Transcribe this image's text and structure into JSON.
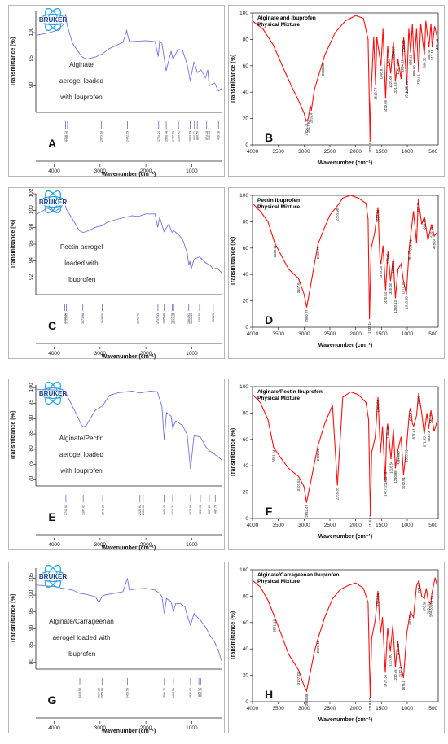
{
  "logo_text": "BRUKER",
  "colors": {
    "blue_spectrum": "#6f73e0",
    "red_spectrum": "#ff1010",
    "logo": "#29a9e0"
  },
  "chart_data": [
    {
      "id": "A",
      "type": "line",
      "letter": "A",
      "style": "bruker",
      "title_lines": [
        "Alginate",
        "aerogel loaded",
        "with Ibuprofen"
      ],
      "xlabel": "Wavenumber (cm⁻¹)",
      "ylabel": "Transmittance [%]",
      "xlim": [
        4400,
        350
      ],
      "ylim": [
        85,
        104
      ],
      "xticks": [
        4000,
        3000,
        2000,
        1000
      ],
      "xtick_labels": [
        "4000",
        "3000",
        "2000",
        "1000"
      ],
      "yticks": [
        90,
        95,
        100
      ],
      "ytick_labels": [
        "90",
        "95",
        "100"
      ],
      "peaks": [
        "3749.12",
        "3708.74",
        "2973.98",
        "2402.29",
        "1721.24",
        "1556.48",
        "1407.91",
        "1289.42",
        "1033.99",
        "940.72",
        "880.56",
        "674.28",
        "622.66",
        "416.78"
      ],
      "x": [
        4400,
        4100,
        3950,
        3800,
        3750,
        3720,
        3600,
        3400,
        3300,
        3100,
        2950,
        2800,
        2500,
        2420,
        2360,
        2000,
        1800,
        1730,
        1700,
        1650,
        1560,
        1450,
        1410,
        1300,
        1200,
        1100,
        1033,
        950,
        880,
        800,
        700,
        650,
        620,
        500,
        420,
        350
      ],
      "y": [
        99.5,
        100.0,
        100.4,
        101.5,
        103.5,
        101.5,
        98.0,
        95.5,
        95.0,
        95.4,
        96.0,
        97.0,
        98.2,
        100.4,
        98.3,
        98.5,
        98.3,
        95.5,
        98.4,
        98.0,
        92.8,
        96.5,
        95.0,
        96.8,
        96.7,
        94.0,
        91.0,
        94.5,
        92.5,
        93.0,
        91.5,
        93.0,
        90.0,
        90.5,
        89.0,
        89.5
      ]
    },
    {
      "id": "B",
      "type": "line",
      "letter": "B",
      "style": "red",
      "title_lines": [
        "Alginate and Ibuprofen",
        "Physical Mixture"
      ],
      "xlabel": "Wavenumber (cm⁻¹)",
      "ylabel": "Transmittance (%)",
      "xlim": [
        4000,
        400
      ],
      "ylim": [
        0,
        100
      ],
      "xticks": [
        4000,
        3500,
        3000,
        2500,
        2000,
        1500,
        1000,
        500
      ],
      "xtick_labels": [
        "4000",
        "3500",
        "3000",
        "2500",
        "2000",
        "1500",
        "1000",
        "500"
      ],
      "yticks": [
        0,
        20,
        40,
        60,
        80,
        100
      ],
      "ytick_labels": [
        "0",
        "20",
        "40",
        "60",
        "80",
        "100"
      ],
      "annotations": [
        "2917.92",
        "2954.71",
        "2859.4",
        "2633.86",
        "1721.10",
        "1613.77",
        "1508.81",
        "1420.69",
        "1367.40",
        "1321.08",
        "1268.07",
        "1231.63",
        "1182.20",
        "1094.22",
        "1069.06",
        "1011.87",
        "1005.24",
        "935.11",
        "865.80",
        "779.51",
        "668.32",
        "580.44",
        "517.15",
        "421.44"
      ],
      "x": [
        4000,
        3800,
        3600,
        3400,
        3250,
        3100,
        3000,
        2960,
        2920,
        2880,
        2860,
        2800,
        2700,
        2600,
        2400,
        2200,
        2000,
        1850,
        1760,
        1730,
        1722,
        1710,
        1650,
        1614,
        1590,
        1510,
        1470,
        1420,
        1380,
        1320,
        1270,
        1230,
        1180,
        1120,
        1070,
        1010,
        970,
        935,
        900,
        866,
        820,
        780,
        740,
        668,
        640,
        580,
        540,
        517,
        470,
        421
      ],
      "y": [
        94,
        88,
        76,
        58,
        45,
        33,
        24,
        18,
        20,
        30,
        26,
        42,
        55,
        68,
        85,
        94,
        98,
        96,
        80,
        20,
        3,
        30,
        82,
        45,
        82,
        60,
        88,
        35,
        75,
        54,
        78,
        48,
        65,
        50,
        82,
        45,
        88,
        70,
        92,
        62,
        88,
        55,
        92,
        68,
        94,
        74,
        92,
        74,
        90,
        82
      ]
    },
    {
      "id": "C",
      "type": "line",
      "letter": "C",
      "style": "bruker",
      "title_lines": [
        "Pectin aerogel",
        "loaded with",
        "Ibuprofen"
      ],
      "xlabel": "Wavenumber (cm⁻¹)",
      "ylabel": "Transmittance [%]",
      "xlim": [
        4400,
        350
      ],
      "ylim": [
        90,
        102
      ],
      "xticks": [
        4000,
        3000,
        2000,
        1000
      ],
      "xtick_labels": [
        "4000",
        "3000",
        "2000",
        "1000"
      ],
      "yticks": [
        92,
        94,
        96,
        98,
        100,
        102
      ],
      "ytick_labels": [
        "92",
        "94",
        "96",
        "98",
        "100",
        "102"
      ],
      "peaks": [
        "3769.32",
        "3735.05",
        "3373.96",
        "2949.50",
        "2171.48",
        "1737.13",
        "1605.46",
        "1427.18",
        "1395.18",
        "1064.91",
        "1013.55",
        "830.30",
        "530.26"
      ],
      "x": [
        4400,
        4150,
        4000,
        3850,
        3770,
        3740,
        3600,
        3450,
        3370,
        3300,
        3100,
        2950,
        2850,
        2600,
        2300,
        2170,
        2000,
        1800,
        1740,
        1700,
        1605,
        1500,
        1430,
        1395,
        1300,
        1200,
        1100,
        1064,
        1040,
        1013,
        950,
        830,
        700,
        600,
        530,
        450,
        350
      ],
      "y": [
        99.5,
        100.3,
        99.8,
        100.4,
        101.0,
        100.2,
        99.0,
        97.6,
        97.4,
        97.5,
        98.0,
        98.2,
        98.6,
        99.0,
        99.4,
        99.3,
        99.6,
        99.6,
        98.0,
        99.2,
        97.5,
        98.4,
        97.4,
        97.6,
        97.2,
        96.6,
        95.0,
        93.5,
        94.0,
        93.0,
        94.2,
        94.5,
        93.8,
        93.5,
        93.0,
        93.2,
        92.6
      ]
    },
    {
      "id": "D",
      "type": "line",
      "letter": "D",
      "style": "red",
      "title_lines": [
        "Pectin Ibuprofen",
        "Physical Mixture"
      ],
      "xlabel": "Wavenumber (cm⁻¹)",
      "ylabel": "Transmittance (%)",
      "xlim": [
        4000,
        400
      ],
      "ylim": [
        0,
        100
      ],
      "xticks": [
        4000,
        3500,
        3000,
        2500,
        2000,
        1500,
        1000,
        500
      ],
      "xtick_labels": [
        "4000",
        "3500",
        "3000",
        "2500",
        "2000",
        "1500",
        "1000",
        "500"
      ],
      "yticks": [
        0,
        20,
        40,
        60,
        80,
        100
      ],
      "ytick_labels": [
        "0",
        "20",
        "40",
        "60",
        "80",
        "100"
      ],
      "annotations": [
        "3568.11",
        "3107.61",
        "2950.27",
        "2730.77",
        "2355.98",
        "1732.14",
        "1567.74",
        "1510.28",
        "1420.54",
        "1375.45",
        "1325.08",
        "1273.11",
        "1230.13",
        "1077.76",
        "1018.68",
        "961.77",
        "938.71",
        "784.71",
        "669.15",
        "529.45",
        "478.04"
      ],
      "x": [
        4000,
        3850,
        3700,
        3570,
        3450,
        3300,
        3108,
        3000,
        2950,
        2880,
        2800,
        2730,
        2600,
        2500,
        2356,
        2250,
        2100,
        1950,
        1800,
        1760,
        1732,
        1700,
        1630,
        1568,
        1530,
        1510,
        1470,
        1420,
        1375,
        1325,
        1273,
        1230,
        1180,
        1120,
        1077,
        1018,
        962,
        939,
        880,
        820,
        785,
        720,
        669,
        600,
        529,
        478,
        420
      ],
      "y": [
        94,
        88,
        80,
        64,
        55,
        44,
        37,
        25,
        15,
        30,
        48,
        63,
        76,
        85,
        92,
        98,
        100,
        98,
        94,
        82,
        6,
        60,
        72,
        91,
        52,
        48,
        62,
        28,
        58,
        35,
        52,
        22,
        44,
        48,
        36,
        25,
        60,
        68,
        88,
        64,
        97,
        78,
        84,
        66,
        78,
        69,
        72
      ]
    },
    {
      "id": "E",
      "type": "line",
      "letter": "E",
      "style": "bruker",
      "title_lines": [
        "Alginate/Pectin",
        "aerogel loaded",
        "with Ibuprofen"
      ],
      "xlabel": "Wavenumber (cm⁻¹)",
      "ylabel": "Transmittance [%]",
      "xlim": [
        4400,
        350
      ],
      "ylim": [
        68,
        101
      ],
      "xticks": [
        4000,
        3000,
        2000,
        1000
      ],
      "xtick_labels": [
        "4000",
        "3000",
        "2000",
        "1000"
      ],
      "yticks": [
        70,
        75,
        80,
        85,
        90,
        95,
        100
      ],
      "ytick_labels": [
        "70",
        "75",
        "80",
        "85",
        "90",
        "95",
        "100"
      ],
      "peaks": [
        "3744.61",
        "3367.03",
        "2942.33",
        "2129.62",
        "2059.03",
        "1600.46",
        "1416.34",
        "1026.06",
        "812.08",
        "617.20",
        "487.76"
      ],
      "x": [
        4400,
        4000,
        3800,
        3745,
        3650,
        3500,
        3400,
        3367,
        3300,
        3100,
        2942,
        2800,
        2600,
        2300,
        2130,
        2060,
        1900,
        1750,
        1650,
        1600,
        1550,
        1450,
        1416,
        1350,
        1200,
        1100,
        1026,
        950,
        812,
        700,
        617,
        550,
        488,
        400,
        350
      ],
      "y": [
        99.5,
        99.4,
        99.0,
        98.4,
        95.5,
        91.0,
        87.8,
        87.3,
        87.8,
        92.8,
        94.2,
        97.6,
        98.5,
        99.0,
        98.4,
        98.6,
        99.0,
        98.8,
        94.0,
        83.0,
        92.0,
        90.8,
        87.0,
        89.2,
        87.8,
        84.8,
        73.5,
        84.5,
        84.0,
        81.0,
        79.5,
        79.0,
        78.2,
        77.2,
        76.5
      ]
    },
    {
      "id": "F",
      "type": "line",
      "letter": "F",
      "style": "red",
      "title_lines": [
        "Alginate/Pectin Ibuprofen",
        "Physical Mixture"
      ],
      "xlabel": "Wavenumber (cm⁻¹)",
      "ylabel": "Transmittance (%)",
      "xlim": [
        4000,
        400
      ],
      "ylim": [
        0,
        100
      ],
      "xticks": [
        4000,
        3500,
        3000,
        2500,
        2000,
        1500,
        1000,
        500
      ],
      "xtick_labels": [
        "4000",
        "3500",
        "3000",
        "2500",
        "2000",
        "1500",
        "1000",
        "500"
      ],
      "yticks": [
        0,
        20,
        40,
        60,
        80,
        100
      ],
      "ytick_labels": [
        "0",
        "20",
        "40",
        "60",
        "80",
        "100"
      ],
      "annotations": [
        "3591.14",
        "3107.53",
        "2953.47",
        "2732.25",
        "2355.35",
        "1715.14",
        "1567.74",
        "1427.15",
        "1420.14",
        "1380.18",
        "1316.54",
        "1230.88",
        "1182.92",
        "1176.06",
        "1072.51",
        "1015.03",
        "937.47",
        "877.43",
        "779.29",
        "671.95",
        "583.73",
        "540.77"
      ],
      "x": [
        4000,
        3850,
        3700,
        3591,
        3450,
        3300,
        3108,
        3000,
        2953,
        2880,
        2800,
        2732,
        2600,
        2450,
        2355,
        2250,
        2100,
        1950,
        1800,
        1750,
        1715,
        1690,
        1620,
        1568,
        1520,
        1480,
        1427,
        1400,
        1380,
        1316,
        1270,
        1231,
        1182,
        1120,
        1072,
        1015,
        960,
        937,
        900,
        877,
        820,
        779,
        720,
        672,
        620,
        584,
        541,
        480,
        420
      ],
      "y": [
        94,
        88,
        75,
        54,
        46,
        38,
        32,
        24,
        12,
        26,
        42,
        55,
        72,
        86,
        25,
        92,
        96,
        94,
        88,
        75,
        2,
        50,
        62,
        92,
        50,
        70,
        28,
        64,
        72,
        45,
        68,
        38,
        52,
        62,
        33,
        54,
        80,
        84,
        72,
        70,
        78,
        95,
        80,
        64,
        80,
        68,
        82,
        66,
        74
      ]
    },
    {
      "id": "G",
      "type": "line",
      "letter": "G",
      "style": "bruker",
      "title_lines": [
        "Alginate/Carrageenan",
        "aerogel loaded with",
        "Ibuprofen"
      ],
      "xlabel": "Wavenumber (cm⁻¹)",
      "ylabel": "Transmittance [%]",
      "xlim": [
        4400,
        350
      ],
      "ylim": [
        78,
        108
      ],
      "xticks": [
        4000,
        3000,
        2000,
        1000
      ],
      "xtick_labels": [
        "4000",
        "3000",
        "2000",
        "1000"
      ],
      "yticks": [
        80,
        85,
        90,
        95,
        100,
        105
      ],
      "ytick_labels": [
        "80",
        "85",
        "90",
        "95",
        "100",
        "105"
      ],
      "peaks": [
        "3440.56",
        "3027.28",
        "2955.68",
        "2403.50",
        "1596.76",
        "1400.51",
        "1026.62",
        "845.32",
        "806.59"
      ],
      "x": [
        4400,
        4000,
        3800,
        3600,
        3440,
        3300,
        3100,
        3027,
        2956,
        2900,
        2700,
        2500,
        2404,
        2360,
        2200,
        2000,
        1800,
        1700,
        1650,
        1597,
        1550,
        1450,
        1400,
        1350,
        1250,
        1150,
        1100,
        1027,
        950,
        845,
        807,
        700,
        600,
        500,
        420,
        350
      ],
      "y": [
        103.0,
        102.5,
        102.0,
        101.5,
        100.5,
        100.2,
        99.5,
        97.8,
        99.5,
        100.0,
        100.5,
        101.0,
        105.0,
        101.5,
        101.8,
        102.0,
        101.5,
        100.5,
        99.5,
        94.5,
        99.0,
        98.0,
        95.0,
        97.5,
        97.5,
        96.5,
        94.0,
        91.0,
        94.5,
        93.0,
        92.5,
        90.5,
        88.0,
        86.0,
        83.5,
        80.5
      ]
    },
    {
      "id": "H",
      "type": "line",
      "letter": "H",
      "style": "red",
      "title_lines": [
        "Alginate/Carrageenan Ibuprofen",
        "Physical Mixture"
      ],
      "xlabel": "Wavenumber (cm⁻¹)",
      "ylabel": "Transmittance (%)",
      "xlim": [
        4000,
        400
      ],
      "ylim": [
        0,
        100
      ],
      "xticks": [
        4000,
        3500,
        3000,
        2500,
        2000,
        1500,
        1000,
        500
      ],
      "xtick_labels": [
        "4000",
        "3500",
        "3000",
        "2500",
        "2000",
        "1500",
        "1000",
        "500"
      ],
      "yticks": [
        0,
        20,
        40,
        60,
        80,
        100
      ],
      "ytick_labels": [
        "0",
        "20",
        "40",
        "60",
        "80",
        "100"
      ],
      "annotations": [
        "3571.13",
        "3107.23",
        "2950.88",
        "2729.14",
        "1718.67",
        "1567.74",
        "1427.35",
        "1327.80",
        "1230.45",
        "1183.85",
        "1132.1",
        "1071.8",
        "941.95",
        "774.09",
        "670.38",
        "593.11",
        "544.33",
        "523.13"
      ],
      "x": [
        4000,
        3850,
        3700,
        3571,
        3450,
        3300,
        3107,
        3000,
        2951,
        2880,
        2800,
        2729,
        2600,
        2450,
        2300,
        2150,
        2000,
        1850,
        1760,
        1719,
        1690,
        1620,
        1568,
        1520,
        1480,
        1427,
        1380,
        1328,
        1280,
        1230,
        1184,
        1132,
        1072,
        1010,
        942,
        880,
        820,
        774,
        720,
        670,
        630,
        593,
        544,
        523,
        460,
        420
      ],
      "y": [
        92,
        87,
        77,
        64,
        52,
        36,
        24,
        12,
        8,
        22,
        38,
        48,
        64,
        78,
        85,
        88,
        90,
        86,
        75,
        3,
        48,
        62,
        84,
        52,
        64,
        22,
        56,
        38,
        58,
        26,
        46,
        28,
        18,
        52,
        68,
        64,
        88,
        92,
        80,
        78,
        86,
        76,
        74,
        82,
        94,
        88
      ]
    }
  ]
}
